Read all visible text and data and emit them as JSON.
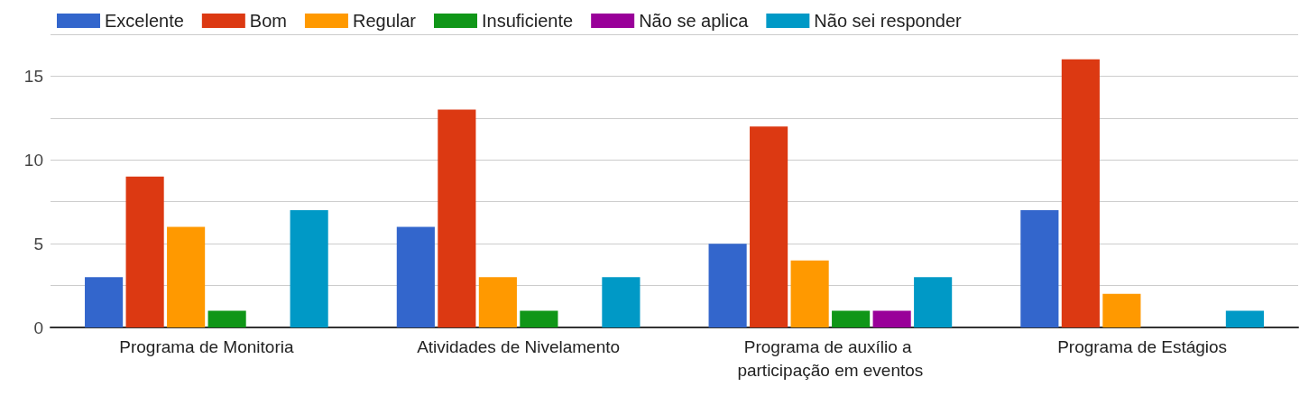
{
  "chart_data": {
    "type": "bar",
    "categories": [
      "Programa de Monitoria",
      "Atividades de Nivelamento",
      "Programa de auxílio a participação em eventos",
      "Programa de Estágios"
    ],
    "series": [
      {
        "name": "Excelente",
        "color": "#3366cc",
        "values": [
          3,
          6,
          5,
          7
        ]
      },
      {
        "name": "Bom",
        "color": "#dc3912",
        "values": [
          9,
          13,
          12,
          16
        ]
      },
      {
        "name": "Regular",
        "color": "#ff9900",
        "values": [
          6,
          3,
          4,
          2
        ]
      },
      {
        "name": "Insuficiente",
        "color": "#109618",
        "values": [
          1,
          1,
          1,
          0
        ]
      },
      {
        "name": "Não se aplica",
        "color": "#990099",
        "values": [
          0,
          0,
          1,
          0
        ]
      },
      {
        "name": "Não sei responder",
        "color": "#0099c6",
        "values": [
          7,
          3,
          3,
          1
        ]
      }
    ],
    "ylim": [
      0,
      17.5
    ],
    "yticks": [
      0,
      {
        "value": 2.5,
        "label": null
      },
      5,
      {
        "value": 7.5,
        "label": null
      },
      10,
      {
        "value": 12.5,
        "label": null
      },
      15,
      {
        "value": 17.5,
        "label": null
      }
    ],
    "grid": "y",
    "legend": "top left"
  }
}
